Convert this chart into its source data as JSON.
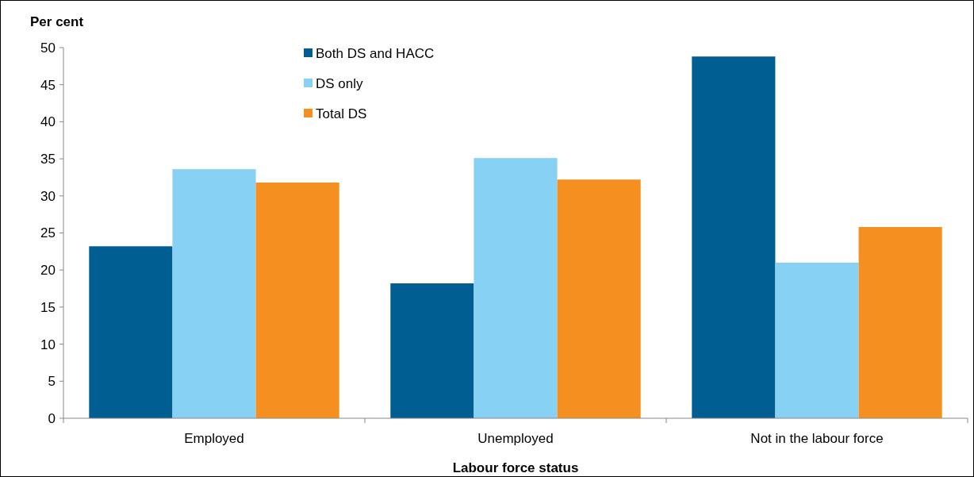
{
  "chart_data": {
    "type": "bar",
    "xlabel": "Labour force status",
    "ylabel": "Per cent",
    "categories": [
      "Employed",
      "Unemployed",
      "Not in the labour force"
    ],
    "series": [
      {
        "name": "Both DS and HACC",
        "color": "#005e93",
        "values": [
          23.2,
          18.2,
          48.8
        ]
      },
      {
        "name": "DS only",
        "color": "#86d1f4",
        "values": [
          33.6,
          35.1,
          21.0
        ]
      },
      {
        "name": "Total DS",
        "color": "#f58f20",
        "values": [
          31.8,
          32.2,
          25.8
        ]
      }
    ],
    "ylim": [
      0,
      50
    ],
    "yticks": [
      0,
      5,
      10,
      15,
      20,
      25,
      30,
      35,
      40,
      45,
      50
    ],
    "grid": false,
    "legend": "top"
  }
}
